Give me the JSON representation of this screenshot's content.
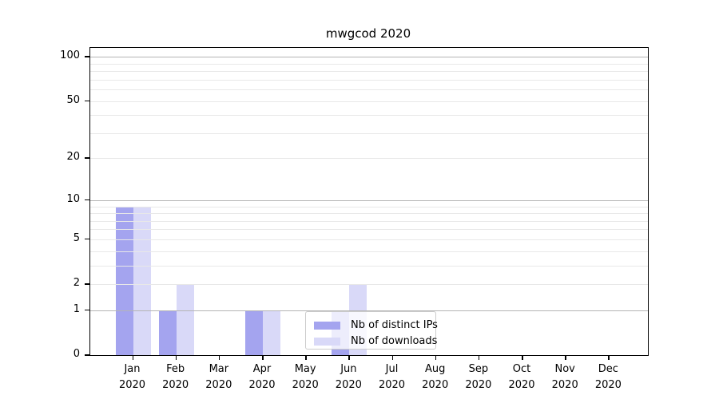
{
  "chart_data": {
    "type": "bar",
    "title": "mwgcod 2020",
    "x_categories": [
      "Jan",
      "Feb",
      "Mar",
      "Apr",
      "May",
      "Jun",
      "Jul",
      "Aug",
      "Sep",
      "Oct",
      "Nov",
      "Dec"
    ],
    "x_year": "2020",
    "series": [
      {
        "name": "Nb of distinct IPs",
        "color": "#a4a4ef",
        "values": [
          9,
          1,
          0,
          1,
          0,
          1,
          0,
          0,
          0,
          0,
          0,
          0
        ]
      },
      {
        "name": "Nb of downloads",
        "color": "#d9d9f8",
        "values": [
          9,
          2,
          0,
          1,
          0,
          2,
          0,
          0,
          0,
          0,
          0,
          0
        ]
      }
    ],
    "yscale": "log1p",
    "ylim": [
      0,
      115
    ],
    "yticks": [
      {
        "value": 100,
        "label": "100",
        "major": true
      },
      {
        "value": 50,
        "label": "50",
        "major": false
      },
      {
        "value": 20,
        "label": "20",
        "major": false
      },
      {
        "value": 10,
        "label": "10",
        "major": true
      },
      {
        "value": 5,
        "label": "5",
        "major": false
      },
      {
        "value": 2,
        "label": "2",
        "major": false
      },
      {
        "value": 1,
        "label": "1",
        "major": true
      },
      {
        "value": 0,
        "label": "0",
        "major": false
      }
    ],
    "minor_grid_values": [
      3,
      4,
      6,
      7,
      8,
      9,
      30,
      40,
      60,
      70,
      80,
      90
    ],
    "grid": true,
    "legend": {
      "position": "lower center"
    }
  },
  "colors": {
    "major_grid": "#b4b4b4",
    "minor_grid": "#e8e8e8",
    "spine": "#000000",
    "legend_border": "#cccccc",
    "bar_distinct_ips": "#a4a4ef",
    "bar_downloads": "#d9d9f8"
  }
}
